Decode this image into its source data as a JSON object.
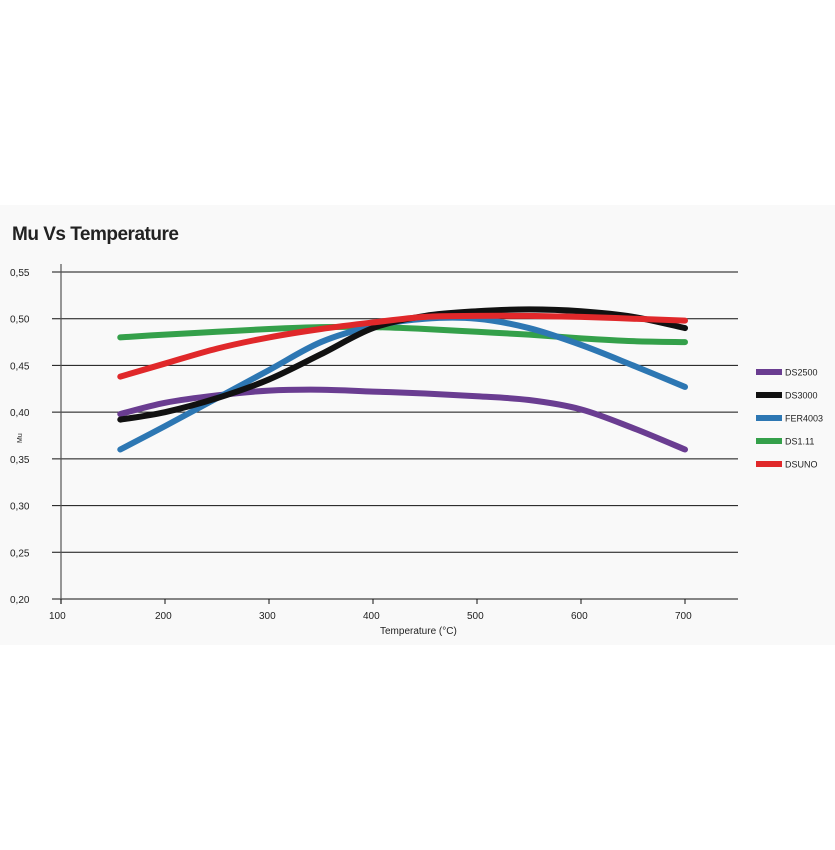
{
  "chart_data": {
    "type": "line",
    "title": "Mu Vs Temperature",
    "xlabel": "Temperature (°C)",
    "ylabel": "Mu",
    "xlim": [
      100,
      750
    ],
    "ylim": [
      0.2,
      0.55
    ],
    "xticks": [
      100,
      200,
      300,
      400,
      500,
      600,
      700
    ],
    "xtick_labels": [
      "100",
      "200",
      "300",
      "400",
      "500",
      "600",
      "700"
    ],
    "yticks": [
      0.2,
      0.25,
      0.3,
      0.35,
      0.4,
      0.45,
      0.5,
      0.55
    ],
    "ytick_labels": [
      "0,20",
      "0,25",
      "0,30",
      "0,35",
      "0,40",
      "0,45",
      "0,50",
      "0,55"
    ],
    "grid": "horizontal",
    "legend_position": "right",
    "x": [
      157,
      200,
      250,
      300,
      350,
      400,
      450,
      500,
      550,
      600,
      650,
      700
    ],
    "series": [
      {
        "name": "DS2500",
        "color": "#6a3d91",
        "values": [
          0.398,
          0.41,
          0.418,
          0.423,
          0.424,
          0.422,
          0.42,
          0.417,
          0.413,
          0.403,
          0.383,
          0.36
        ]
      },
      {
        "name": "DS3000",
        "color": "#111111",
        "values": [
          0.392,
          0.4,
          0.415,
          0.435,
          0.462,
          0.49,
          0.503,
          0.508,
          0.51,
          0.508,
          0.502,
          0.49
        ]
      },
      {
        "name": "FER4003",
        "color": "#2d77b3",
        "values": [
          0.36,
          0.385,
          0.415,
          0.445,
          0.475,
          0.492,
          0.5,
          0.5,
          0.49,
          0.472,
          0.45,
          0.427
        ]
      },
      {
        "name": "DS1.11",
        "color": "#34a04a",
        "values": [
          0.48,
          0.483,
          0.486,
          0.489,
          0.491,
          0.491,
          0.489,
          0.486,
          0.483,
          0.479,
          0.476,
          0.475
        ]
      },
      {
        "name": "DSUNO",
        "color": "#e0282a",
        "values": [
          0.438,
          0.452,
          0.468,
          0.48,
          0.489,
          0.496,
          0.502,
          0.503,
          0.503,
          0.502,
          0.5,
          0.498
        ]
      }
    ]
  }
}
